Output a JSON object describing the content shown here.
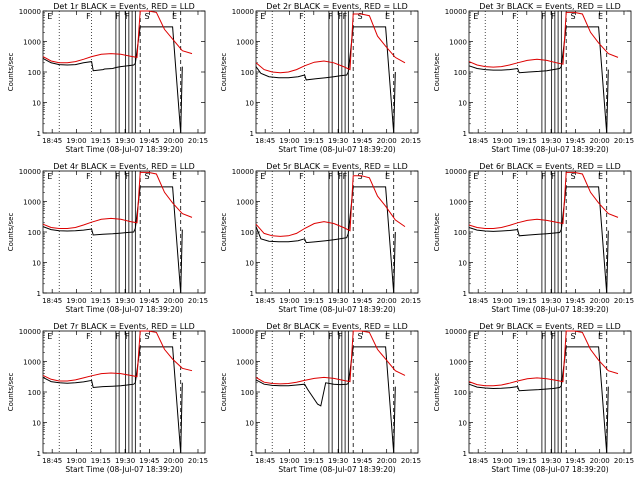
{
  "colors": {
    "events": "#000000",
    "lld": "#dd0000",
    "background": "#ffffff"
  },
  "chart_data": [
    {
      "type": "line",
      "title": "Det 1r BLACK = Events, RED = LLD",
      "xlabel": "Start Time (08-Jul-07 18:39:20)",
      "ylabel": "Counts/sec",
      "xticks": [
        "18:45",
        "19:00",
        "19:15",
        "19:30",
        "19:45",
        "20:00",
        "20:15"
      ],
      "yticks": [
        "1",
        "10",
        "100",
        "1000",
        "10000"
      ],
      "yscale": "log",
      "ylim": [
        1,
        10000
      ],
      "xlim_minutes": [
        0,
        100
      ],
      "markers": [
        "E",
        "F",
        "F",
        "F",
        "S",
        "E"
      ],
      "series": [
        {
          "name": "Events",
          "color": "#000000",
          "x": [
            0,
            5,
            10,
            15,
            20,
            25,
            30,
            31,
            37,
            38,
            43,
            45,
            48,
            56,
            57,
            60,
            80,
            85,
            86
          ],
          "y": [
            280,
            200,
            175,
            170,
            175,
            200,
            220,
            110,
            120,
            125,
            130,
            140,
            150,
            170,
            190,
            3000,
            3000,
            1,
            150
          ]
        },
        {
          "name": "LLD",
          "color": "#dd0000",
          "x": [
            0,
            5,
            10,
            15,
            20,
            25,
            30,
            36,
            42,
            48,
            54,
            58,
            60,
            65,
            70,
            75,
            80,
            86,
            92
          ],
          "y": [
            320,
            230,
            200,
            200,
            220,
            260,
            320,
            380,
            400,
            380,
            330,
            300,
            10000,
            10000,
            9000,
            2500,
            1200,
            500,
            400
          ]
        }
      ]
    },
    {
      "type": "line",
      "title": "Det 2r BLACK = Events, RED = LLD",
      "xlabel": "Start Time (08-Jul-07 18:39:20)",
      "ylabel": "Counts/sec",
      "xticks": [
        "18:45",
        "19:00",
        "19:15",
        "19:30",
        "19:45",
        "20:00",
        "20:15"
      ],
      "yticks": [
        "1",
        "10",
        "100",
        "1000",
        "10000"
      ],
      "yscale": "log",
      "ylim": [
        1,
        10000
      ],
      "xlim_minutes": [
        0,
        100
      ],
      "markers": [
        "E",
        "F",
        "F",
        "FF",
        "S",
        "E"
      ],
      "series": [
        {
          "name": "Events",
          "color": "#000000",
          "x": [
            0,
            3,
            8,
            14,
            20,
            26,
            30,
            31,
            37,
            43,
            48,
            52,
            56,
            57,
            60,
            80,
            85,
            86
          ],
          "y": [
            150,
            90,
            70,
            65,
            65,
            70,
            80,
            55,
            60,
            65,
            70,
            75,
            80,
            100,
            3000,
            3000,
            1,
            100
          ]
        },
        {
          "name": "LLD",
          "color": "#dd0000",
          "x": [
            0,
            5,
            10,
            15,
            20,
            25,
            30,
            36,
            42,
            48,
            54,
            58,
            60,
            65,
            70,
            75,
            80,
            86,
            92
          ],
          "y": [
            200,
            120,
            100,
            95,
            100,
            120,
            160,
            210,
            230,
            200,
            150,
            120,
            8000,
            8000,
            7000,
            1500,
            700,
            300,
            200
          ]
        }
      ]
    },
    {
      "type": "line",
      "title": "Det 3r BLACK = Events, RED = LLD",
      "xlabel": "Start Time (08-Jul-07 18:39:20)",
      "ylabel": "Counts/sec",
      "xticks": [
        "18:45",
        "19:00",
        "19:15",
        "19:30",
        "19:45",
        "20:00",
        "20:15"
      ],
      "yticks": [
        "1",
        "10",
        "100",
        "1000",
        "10000"
      ],
      "yscale": "log",
      "ylim": [
        1,
        10000
      ],
      "xlim_minutes": [
        0,
        100
      ],
      "markers": [
        "E",
        "F",
        "F",
        "F",
        "S",
        "E"
      ],
      "series": [
        {
          "name": "Events",
          "color": "#000000",
          "x": [
            0,
            5,
            10,
            15,
            20,
            25,
            30,
            31,
            37,
            43,
            48,
            52,
            56,
            57,
            60,
            80,
            85,
            86
          ],
          "y": [
            160,
            130,
            120,
            115,
            115,
            120,
            130,
            95,
            100,
            105,
            110,
            120,
            130,
            150,
            3000,
            3000,
            1,
            120
          ]
        },
        {
          "name": "LLD",
          "color": "#dd0000",
          "x": [
            0,
            5,
            10,
            15,
            20,
            25,
            30,
            36,
            42,
            48,
            54,
            58,
            60,
            65,
            70,
            75,
            80,
            86,
            92
          ],
          "y": [
            220,
            170,
            150,
            145,
            150,
            170,
            200,
            240,
            260,
            240,
            200,
            180,
            9000,
            9000,
            8000,
            2000,
            900,
            400,
            300
          ]
        }
      ]
    },
    {
      "type": "line",
      "title": "Det 4r BLACK = Events, RED = LLD",
      "xlabel": "Start Time (08-Jul-07 18:39:20)",
      "ylabel": "Counts/sec",
      "xticks": [
        "18:45",
        "19:00",
        "19:15",
        "19:30",
        "19:45",
        "20:00",
        "20:15"
      ],
      "yticks": [
        "1",
        "10",
        "100",
        "1000",
        "10000"
      ],
      "yscale": "log",
      "ylim": [
        1,
        10000
      ],
      "xlim_minutes": [
        0,
        100
      ],
      "markers": [
        "E",
        "F",
        "F",
        "F",
        "S",
        "E"
      ],
      "series": [
        {
          "name": "Events",
          "color": "#000000",
          "x": [
            0,
            5,
            10,
            15,
            20,
            25,
            30,
            31,
            37,
            43,
            48,
            52,
            56,
            57,
            60,
            80,
            85,
            86
          ],
          "y": [
            150,
            120,
            110,
            108,
            110,
            115,
            125,
            80,
            85,
            88,
            92,
            96,
            100,
            130,
            3000,
            3000,
            1,
            120
          ]
        },
        {
          "name": "LLD",
          "color": "#dd0000",
          "x": [
            0,
            5,
            10,
            15,
            20,
            25,
            30,
            36,
            42,
            48,
            54,
            58,
            60,
            65,
            70,
            75,
            80,
            86,
            92
          ],
          "y": [
            180,
            140,
            130,
            130,
            140,
            170,
            210,
            260,
            280,
            260,
            220,
            200,
            9000,
            9000,
            8000,
            2000,
            900,
            400,
            300
          ]
        }
      ]
    },
    {
      "type": "line",
      "title": "Det 5r BLACK = Events, RED = LLD",
      "xlabel": "Start Time (08-Jul-07 18:39:20)",
      "ylabel": "Counts/sec",
      "xticks": [
        "18:45",
        "19:00",
        "19:15",
        "19:30",
        "19:45",
        "20:00",
        "20:15"
      ],
      "yticks": [
        "1",
        "10",
        "100",
        "1000",
        "10000"
      ],
      "yscale": "log",
      "ylim": [
        1,
        10000
      ],
      "xlim_minutes": [
        0,
        100
      ],
      "markers": [
        "E",
        "F",
        "F",
        "FF",
        "S",
        "E"
      ],
      "series": [
        {
          "name": "Events",
          "color": "#000000",
          "x": [
            0,
            3,
            8,
            14,
            20,
            26,
            30,
            31,
            37,
            43,
            48,
            52,
            56,
            57,
            60,
            80,
            85,
            86
          ],
          "y": [
            150,
            60,
            50,
            48,
            48,
            52,
            60,
            45,
            48,
            52,
            56,
            60,
            65,
            90,
            3000,
            3000,
            1,
            100
          ]
        },
        {
          "name": "LLD",
          "color": "#dd0000",
          "x": [
            0,
            5,
            10,
            15,
            20,
            25,
            30,
            36,
            42,
            48,
            54,
            58,
            60,
            65,
            70,
            75,
            80,
            86,
            92
          ],
          "y": [
            180,
            90,
            75,
            72,
            75,
            90,
            130,
            190,
            220,
            190,
            140,
            110,
            7000,
            7000,
            6000,
            1500,
            700,
            250,
            150
          ]
        }
      ]
    },
    {
      "type": "line",
      "title": "Det 6r BLACK = Events, RED = LLD",
      "xlabel": "Start Time (08-Jul-07 18:39:20)",
      "ylabel": "Counts/sec",
      "xticks": [
        "18:45",
        "19:00",
        "19:15",
        "19:30",
        "19:45",
        "20:00",
        "20:15"
      ],
      "yticks": [
        "1",
        "10",
        "100",
        "1000",
        "10000"
      ],
      "yscale": "log",
      "ylim": [
        1,
        10000
      ],
      "xlim_minutes": [
        0,
        100
      ],
      "markers": [
        "E",
        "F",
        "F",
        "F",
        "S",
        "E"
      ],
      "series": [
        {
          "name": "Events",
          "color": "#000000",
          "x": [
            0,
            5,
            10,
            15,
            20,
            25,
            30,
            31,
            37,
            43,
            48,
            52,
            56,
            57,
            60,
            80,
            85,
            86
          ],
          "y": [
            140,
            115,
            108,
            105,
            108,
            112,
            120,
            75,
            80,
            84,
            88,
            92,
            96,
            120,
            3000,
            3000,
            1,
            110
          ]
        },
        {
          "name": "LLD",
          "color": "#dd0000",
          "x": [
            0,
            5,
            10,
            15,
            20,
            25,
            30,
            36,
            42,
            48,
            54,
            58,
            60,
            65,
            70,
            75,
            80,
            86,
            92
          ],
          "y": [
            170,
            140,
            130,
            130,
            140,
            165,
            200,
            240,
            260,
            240,
            210,
            190,
            9000,
            9000,
            8000,
            2000,
            900,
            400,
            300
          ]
        }
      ]
    },
    {
      "type": "line",
      "title": "Det 7r BLACK = Events, RED = LLD",
      "xlabel": "Start Time (08-Jul-07 18:39:20)",
      "ylabel": "Counts/sec",
      "xticks": [
        "18:45",
        "19:00",
        "19:15",
        "19:30",
        "19:45",
        "20:00",
        "20:15"
      ],
      "yticks": [
        "1",
        "10",
        "100",
        "1000",
        "10000"
      ],
      "yscale": "log",
      "ylim": [
        1,
        10000
      ],
      "xlim_minutes": [
        0,
        100
      ],
      "markers": [
        "E",
        "F",
        "F",
        "F",
        "S",
        "E"
      ],
      "series": [
        {
          "name": "Events",
          "color": "#000000",
          "x": [
            0,
            5,
            10,
            15,
            20,
            25,
            30,
            31,
            37,
            43,
            48,
            52,
            56,
            57,
            60,
            80,
            85,
            86
          ],
          "y": [
            300,
            220,
            200,
            195,
            200,
            215,
            240,
            140,
            150,
            155,
            160,
            170,
            180,
            200,
            3000,
            3000,
            1,
            200
          ]
        },
        {
          "name": "LLD",
          "color": "#dd0000",
          "x": [
            0,
            5,
            10,
            15,
            20,
            25,
            30,
            36,
            42,
            48,
            54,
            58,
            60,
            65,
            70,
            75,
            80,
            86,
            92
          ],
          "y": [
            350,
            260,
            230,
            230,
            250,
            290,
            340,
            400,
            420,
            400,
            350,
            320,
            10000,
            10000,
            9000,
            2500,
            1200,
            600,
            500
          ]
        }
      ]
    },
    {
      "type": "line",
      "title": "Det 8r BLACK = Events, RED = LLD",
      "xlabel": "Start Time (08-Jul-07 18:39:20)",
      "ylabel": "Counts/sec",
      "xticks": [
        "18:45",
        "19:00",
        "19:15",
        "19:30",
        "19:45",
        "20:00",
        "20:15"
      ],
      "yticks": [
        "1",
        "10",
        "100",
        "1000",
        "10000"
      ],
      "yscale": "log",
      "ylim": [
        1,
        10000
      ],
      "xlim_minutes": [
        0,
        100
      ],
      "markers": [
        "E",
        "F",
        "F",
        "F",
        "S",
        "E"
      ],
      "series": [
        {
          "name": "Events",
          "color": "#000000",
          "x": [
            0,
            5,
            10,
            15,
            20,
            25,
            30,
            32,
            38,
            40,
            43,
            48,
            52,
            56,
            57,
            60,
            80,
            85,
            86
          ],
          "y": [
            250,
            180,
            165,
            160,
            160,
            170,
            180,
            120,
            40,
            35,
            200,
            180,
            175,
            180,
            190,
            3000,
            3000,
            1,
            150
          ]
        },
        {
          "name": "LLD",
          "color": "#dd0000",
          "x": [
            0,
            5,
            10,
            15,
            20,
            25,
            30,
            36,
            42,
            48,
            54,
            58,
            60,
            65,
            70,
            75,
            80,
            86,
            92
          ],
          "y": [
            300,
            210,
            190,
            185,
            190,
            210,
            240,
            280,
            300,
            280,
            240,
            220,
            10000,
            10000,
            9000,
            2500,
            1200,
            500,
            350
          ]
        }
      ]
    },
    {
      "type": "line",
      "title": "Det 9r BLACK = Events, RED = LLD",
      "xlabel": "Start Time (08-Jul-07 18:39:20)",
      "ylabel": "Counts/sec",
      "xticks": [
        "18:45",
        "19:00",
        "19:15",
        "19:30",
        "19:45",
        "20:00",
        "20:15"
      ],
      "yticks": [
        "1",
        "10",
        "100",
        "1000",
        "10000"
      ],
      "yscale": "log",
      "ylim": [
        1,
        10000
      ],
      "xlim_minutes": [
        0,
        100
      ],
      "markers": [
        "E",
        "F",
        "F",
        "F",
        "S",
        "E"
      ],
      "series": [
        {
          "name": "Events",
          "color": "#000000",
          "x": [
            0,
            5,
            10,
            15,
            20,
            25,
            30,
            31,
            37,
            43,
            48,
            52,
            56,
            57,
            60,
            80,
            85,
            86
          ],
          "y": [
            180,
            145,
            135,
            130,
            132,
            138,
            150,
            110,
            115,
            120,
            125,
            130,
            140,
            160,
            3000,
            3000,
            1,
            150
          ]
        },
        {
          "name": "LLD",
          "color": "#dd0000",
          "x": [
            0,
            5,
            10,
            15,
            20,
            25,
            30,
            36,
            42,
            48,
            54,
            58,
            60,
            65,
            70,
            75,
            80,
            86,
            92
          ],
          "y": [
            220,
            175,
            160,
            160,
            170,
            195,
            230,
            270,
            290,
            270,
            240,
            220,
            10000,
            10000,
            9000,
            2500,
            1100,
            500,
            400
          ]
        }
      ]
    }
  ]
}
